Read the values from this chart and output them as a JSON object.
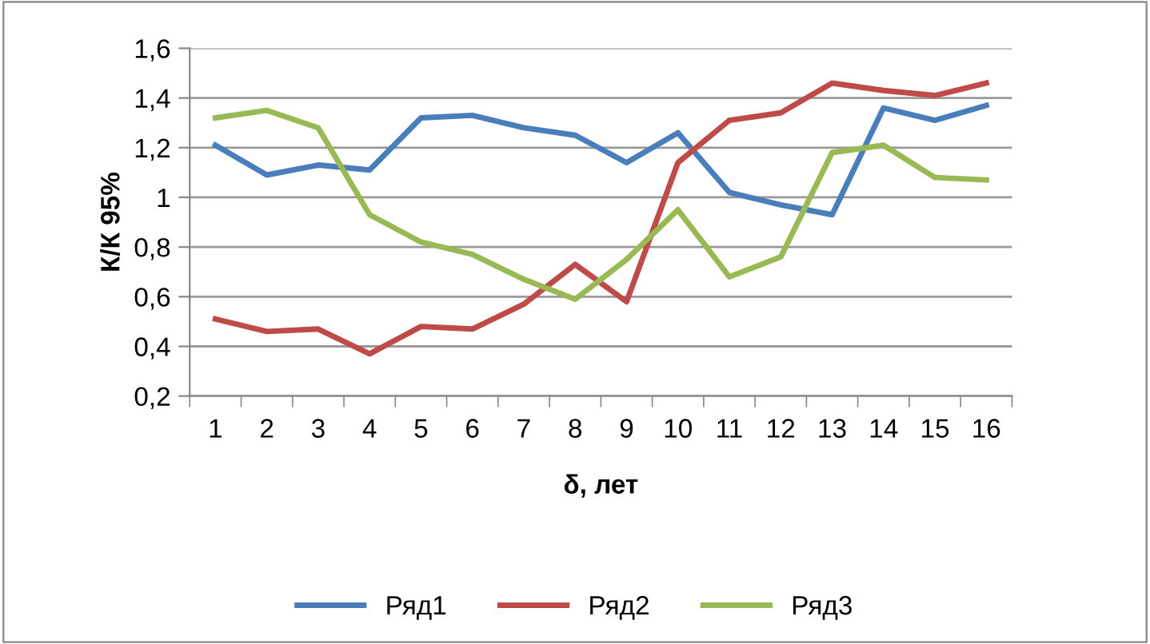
{
  "chart_data": {
    "type": "line",
    "xlabel": "δ, лет",
    "ylabel": "К/К 95%",
    "categories": [
      "1",
      "2",
      "3",
      "4",
      "5",
      "6",
      "7",
      "8",
      "9",
      "10",
      "11",
      "12",
      "13",
      "14",
      "15",
      "16"
    ],
    "series": [
      {
        "name": "Ряд1",
        "color": "#4a7ebb",
        "values": [
          1.21,
          1.09,
          1.13,
          1.11,
          1.32,
          1.33,
          1.28,
          1.25,
          1.14,
          1.26,
          1.02,
          0.97,
          0.93,
          1.36,
          1.31,
          1.37
        ]
      },
      {
        "name": "Ряд2",
        "color": "#be4b48",
        "values": [
          0.51,
          0.46,
          0.47,
          0.37,
          0.48,
          0.47,
          0.57,
          0.73,
          0.58,
          1.14,
          1.31,
          1.34,
          1.46,
          1.43,
          1.41,
          1.46
        ]
      },
      {
        "name": "Ряд3",
        "color": "#98b954",
        "values": [
          1.32,
          1.35,
          1.28,
          0.93,
          0.82,
          0.77,
          0.67,
          0.59,
          0.75,
          0.95,
          0.68,
          0.76,
          1.18,
          1.21,
          1.08,
          1.07
        ]
      }
    ],
    "ylim": [
      0.2,
      1.6
    ],
    "yticks": [
      {
        "value": 0.2,
        "label": "0,2"
      },
      {
        "value": 0.4,
        "label": "0,4"
      },
      {
        "value": 0.6,
        "label": "0,6"
      },
      {
        "value": 0.8,
        "label": "0,8"
      },
      {
        "value": 1,
        "label": "1"
      },
      {
        "value": 1.2,
        "label": "1,2"
      },
      {
        "value": 1.4,
        "label": "1,4"
      },
      {
        "value": 1.6,
        "label": "1,6"
      }
    ],
    "grid": "y",
    "legend": "bottom",
    "marker": "none",
    "line_style": "solid"
  }
}
